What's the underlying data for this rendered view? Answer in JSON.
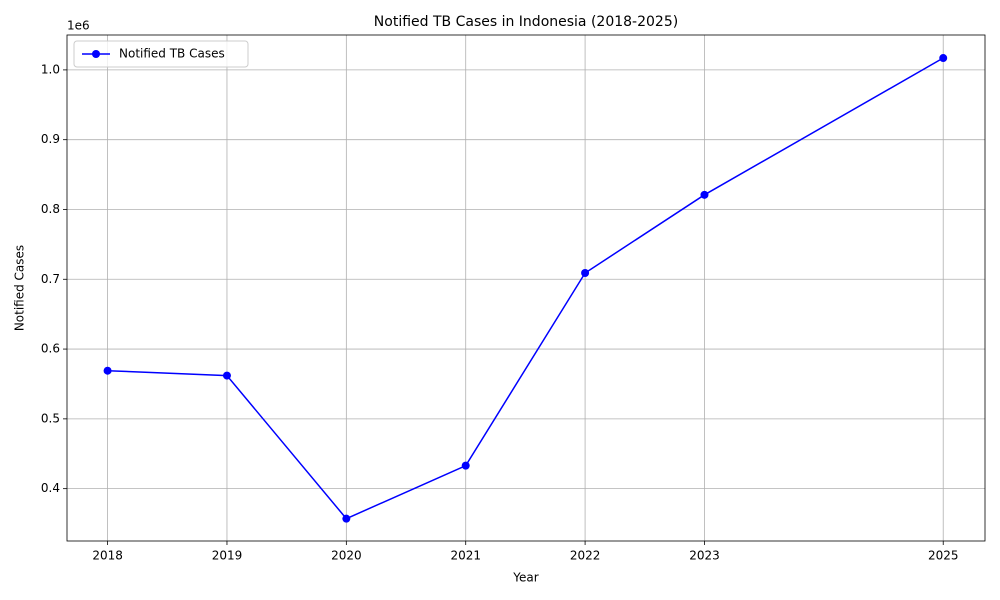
{
  "chart_data": {
    "type": "line",
    "title": "Notified TB Cases in Indonesia (2018-2025)",
    "x_label": "Year",
    "y_label": "Notified Cases",
    "y_offset_label": "1e6",
    "x": [
      2018,
      2019,
      2020,
      2021,
      2022,
      2023,
      2025
    ],
    "series": [
      {
        "name": "Notified TB Cases",
        "color": "#0000ff",
        "values": [
          569000,
          562000,
          357000,
          433000,
          709000,
          821000,
          1017000
        ]
      }
    ],
    "xlim": [
      2017.66,
      2025.35
    ],
    "xticks": [
      2018,
      2019,
      2020,
      2021,
      2022,
      2023,
      2025
    ],
    "ylim": [
      325000,
      1050000
    ],
    "yticks": [
      {
        "value": 400000,
        "label": "0.4"
      },
      {
        "value": 500000,
        "label": "0.5"
      },
      {
        "value": 600000,
        "label": "0.6"
      },
      {
        "value": 700000,
        "label": "0.7"
      },
      {
        "value": 800000,
        "label": "0.8"
      },
      {
        "value": 900000,
        "label": "0.9"
      },
      {
        "value": 1000000,
        "label": "1.0"
      }
    ],
    "grid": true,
    "legend": "upper left",
    "marker": "circle"
  }
}
